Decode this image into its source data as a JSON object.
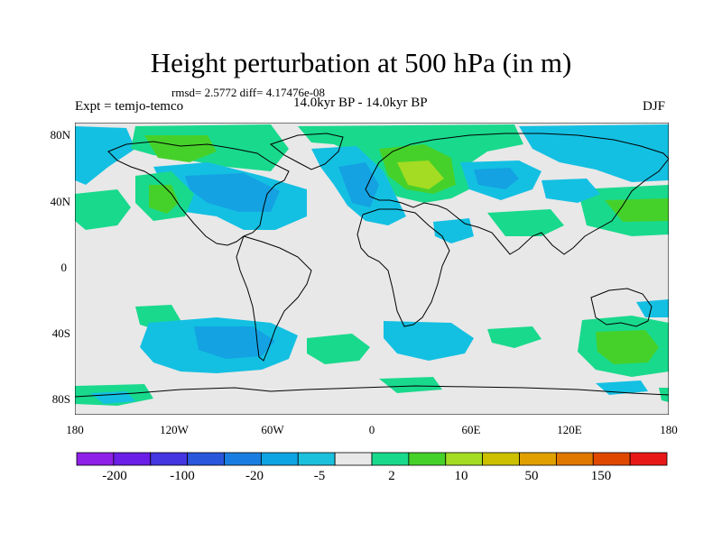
{
  "title": "Height perturbation at 500 hPa (in m)",
  "stats": "rmsd= 2.5772  diff= 4.17476e-08",
  "experiment": "Expt = temjo-temco",
  "period": "14.0kyr BP - 14.0kyr BP",
  "season": "DJF",
  "axes": {
    "lat_ticks": [
      "80N",
      "40N",
      "0",
      "40S",
      "80S"
    ],
    "lon_ticks": [
      "180",
      "120W",
      "60W",
      "0",
      "60E",
      "120E",
      "180"
    ]
  },
  "colorbar": {
    "colors": [
      "#8e20e8",
      "#6a1ee6",
      "#4436e0",
      "#2a56dc",
      "#1a7ee0",
      "#10a3e3",
      "#1bc0dc",
      "#e8e8e8",
      "#19d98d",
      "#46d12a",
      "#a3dc22",
      "#ccc000",
      "#e0a000",
      "#e07800",
      "#e04800",
      "#e81818"
    ],
    "labels": [
      "-200",
      "-100",
      "-20",
      "-5",
      "2",
      "10",
      "50",
      "150"
    ]
  },
  "map_colors": {
    "background": "#e8e8e8",
    "neg_light": "#13c0e2",
    "neg_mid": "#14a2e2",
    "pos_light": "#19d98d",
    "pos_mid": "#46d12a",
    "pos_high": "#a3dc22",
    "coast": "#000000"
  }
}
